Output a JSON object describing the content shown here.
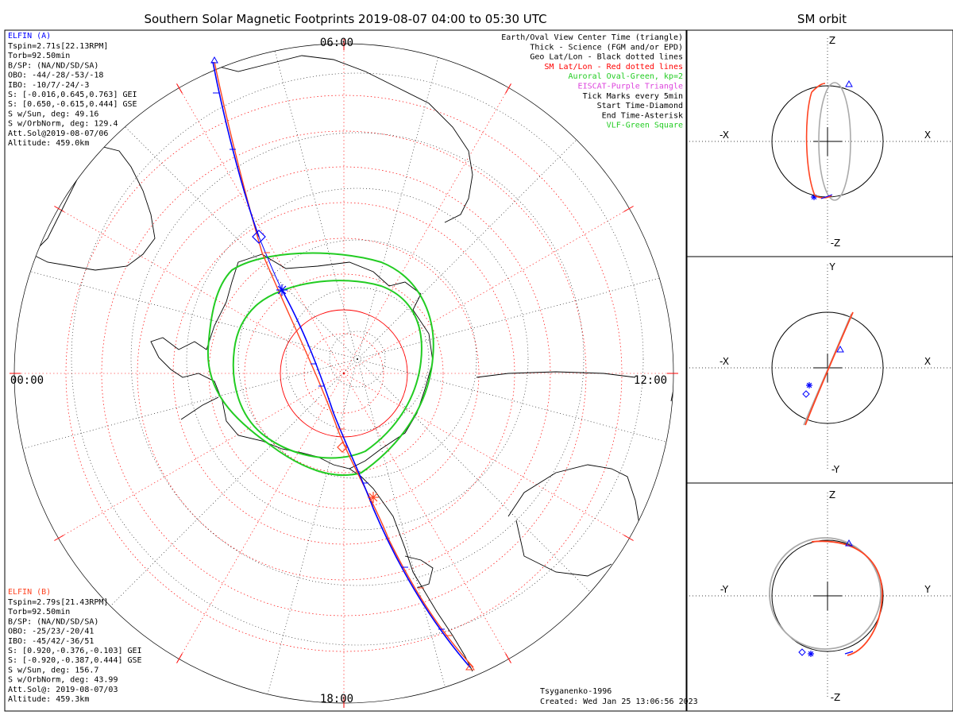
{
  "title": "Southern Solar Magnetic Footprints 2019-08-07 04:00 to 05:30 UTC",
  "side_title": "SM orbit",
  "map": {
    "time_labels": {
      "top": "06:00",
      "right": "12:00",
      "bottom": "18:00",
      "left": "00:00"
    }
  },
  "elfin_a": {
    "name": "ELFIN (A)",
    "lines": [
      "Tspin=2.71s[22.13RPM]",
      "Torb=92.50min",
      "B/SP: (NA/ND/SD/SA)",
      "OBO: -44/-28/-53/-18",
      "IBO: -10/7/-24/-3",
      "S: [-0.016,0.645,0.763] GEI",
      "S: [0.650,-0.615,0.444] GSE",
      "S w/Sun, deg: 49.16",
      "S w/OrbNorm, deg: 129.4",
      "Att.Sol@2019-08-07/06",
      "Altitude: 459.0km"
    ]
  },
  "elfin_b": {
    "name": "ELFIN (B)",
    "lines": [
      "Tspin=2.79s[21.43RPM]",
      "Torb=92.50min",
      "B/SP: (NA/ND/SD/SA)",
      "OBO: -25/23/-20/41",
      "IBO: -45/42/-36/51",
      "S: [0.920,-0.376,-0.103] GEI",
      "S: [-0.920,-0.387,0.444] GSE",
      "S w/Sun, deg: 156.7",
      "S w/OrbNorm, deg: 43.99",
      "Att.Sol@: 2019-08-07/03",
      "Altitude: 459.3km"
    ]
  },
  "legend": [
    {
      "text": "Earth/Oval View Center Time (triangle)",
      "color": "#000000"
    },
    {
      "text": "Thick - Science (FGM and/or EPD)",
      "color": "#000000"
    },
    {
      "text": "Geo Lat/Lon - Black dotted lines",
      "color": "#000000"
    },
    {
      "text": "SM Lat/Lon - Red dotted lines",
      "color": "#ff0000"
    },
    {
      "text": "Auroral Oval-Green, kp=2",
      "color": "#22cc22"
    },
    {
      "text": "EISCAT-Purple Triangle",
      "color": "#dd44dd"
    },
    {
      "text": "Tick Marks every 5min",
      "color": "#000000"
    },
    {
      "text": "Start Time-Diamond",
      "color": "#000000"
    },
    {
      "text": "End Time-Asterisk",
      "color": "#000000"
    },
    {
      "text": "VLF-Green Square",
      "color": "#22cc22"
    }
  ],
  "footer": {
    "model": "Tsyganenko-1996",
    "created": "Created: Wed Jan 25 13:06:56 2023"
  },
  "panels": [
    {
      "top": "Z",
      "bottom": "-Z",
      "left": "-X",
      "right": "X"
    },
    {
      "top": "Y",
      "bottom": "-Y",
      "left": "-X",
      "right": "X"
    },
    {
      "top": "Z",
      "bottom": "-Z",
      "left": "-Y",
      "right": "Y"
    }
  ],
  "colors": {
    "elfin_a": "#0000ff",
    "elfin_b": "#ff4422",
    "oval": "#22cc22",
    "sm_grid": "#ff0000",
    "geo_grid": "#000000",
    "orbit_gray": "#aaaaaa"
  }
}
